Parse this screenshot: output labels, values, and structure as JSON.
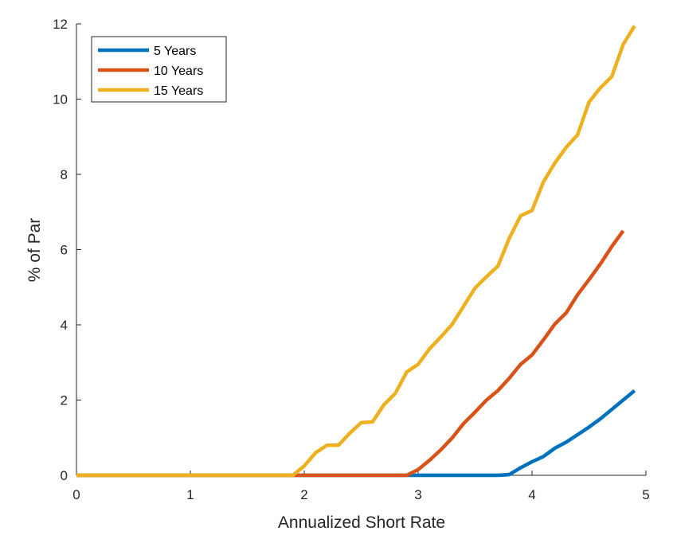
{
  "chart_data": {
    "type": "line",
    "title": "",
    "xlabel": "Annualized Short Rate",
    "ylabel": "% of Par",
    "xlim": [
      0,
      5
    ],
    "ylim": [
      0,
      12
    ],
    "xticks": [
      0,
      1,
      2,
      3,
      4,
      5
    ],
    "yticks": [
      0,
      2,
      4,
      6,
      8,
      10,
      12
    ],
    "grid": false,
    "legend_position": "top-left",
    "series": [
      {
        "name": "5 Years",
        "color": "#0072BD",
        "points": [
          [
            0,
            0
          ],
          [
            1,
            0
          ],
          [
            2,
            0
          ],
          [
            2.9,
            0
          ],
          [
            3.7,
            0
          ],
          [
            3.8,
            0.02
          ],
          [
            3.9,
            0.2
          ],
          [
            4.0,
            0.36
          ],
          [
            4.1,
            0.5
          ],
          [
            4.2,
            0.72
          ],
          [
            4.3,
            0.88
          ],
          [
            4.4,
            1.08
          ],
          [
            4.5,
            1.28
          ],
          [
            4.6,
            1.5
          ],
          [
            4.7,
            1.75
          ],
          [
            4.8,
            2.0
          ],
          [
            4.9,
            2.25
          ]
        ]
      },
      {
        "name": "10 Years",
        "color": "#D95319",
        "points": [
          [
            0,
            0
          ],
          [
            1,
            0
          ],
          [
            2,
            0
          ],
          [
            2.9,
            0
          ],
          [
            3.0,
            0.15
          ],
          [
            3.1,
            0.4
          ],
          [
            3.2,
            0.68
          ],
          [
            3.3,
            1.0
          ],
          [
            3.4,
            1.38
          ],
          [
            3.5,
            1.68
          ],
          [
            3.6,
            2.0
          ],
          [
            3.7,
            2.25
          ],
          [
            3.8,
            2.58
          ],
          [
            3.9,
            2.95
          ],
          [
            4.0,
            3.2
          ],
          [
            4.1,
            3.6
          ],
          [
            4.2,
            4.02
          ],
          [
            4.3,
            4.32
          ],
          [
            4.4,
            4.8
          ],
          [
            4.5,
            5.2
          ],
          [
            4.6,
            5.62
          ],
          [
            4.7,
            6.08
          ],
          [
            4.8,
            6.5
          ]
        ]
      },
      {
        "name": "15 Years",
        "color": "#EDB120",
        "points": [
          [
            0,
            0
          ],
          [
            1,
            0
          ],
          [
            1.9,
            0
          ],
          [
            2.0,
            0.25
          ],
          [
            2.1,
            0.6
          ],
          [
            2.2,
            0.8
          ],
          [
            2.3,
            0.8
          ],
          [
            2.4,
            1.12
          ],
          [
            2.5,
            1.4
          ],
          [
            2.6,
            1.42
          ],
          [
            2.7,
            1.88
          ],
          [
            2.8,
            2.18
          ],
          [
            2.9,
            2.75
          ],
          [
            3.0,
            2.95
          ],
          [
            3.1,
            3.36
          ],
          [
            3.2,
            3.68
          ],
          [
            3.3,
            4.02
          ],
          [
            3.4,
            4.5
          ],
          [
            3.5,
            4.98
          ],
          [
            3.6,
            5.28
          ],
          [
            3.7,
            5.56
          ],
          [
            3.8,
            6.3
          ],
          [
            3.9,
            6.9
          ],
          [
            4.0,
            7.04
          ],
          [
            4.1,
            7.8
          ],
          [
            4.2,
            8.3
          ],
          [
            4.3,
            8.72
          ],
          [
            4.4,
            9.05
          ],
          [
            4.5,
            9.92
          ],
          [
            4.6,
            10.3
          ],
          [
            4.7,
            10.6
          ],
          [
            4.8,
            11.45
          ],
          [
            4.9,
            11.95
          ]
        ]
      }
    ]
  }
}
